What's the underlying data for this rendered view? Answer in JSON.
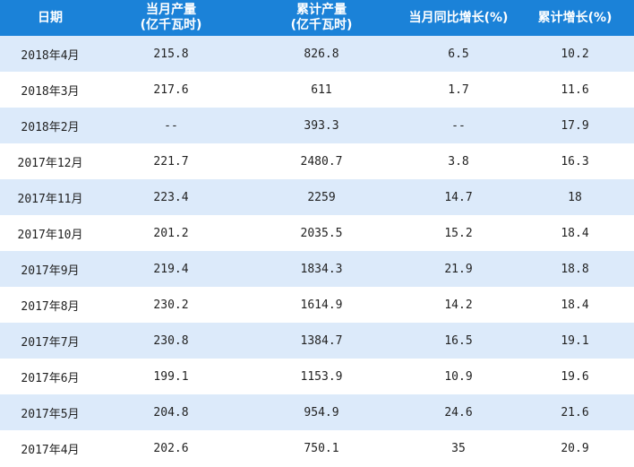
{
  "headers": [
    "日期",
    "当月产量\n(亿千瓦时)",
    "累计产量\n(亿千瓦时)",
    "当月同比增长(%)",
    "累计增长(%)"
  ],
  "header_lines": [
    [
      "日期"
    ],
    [
      "当月产量",
      "(亿千瓦时)"
    ],
    [
      "累计产量",
      "(亿千瓦时)"
    ],
    [
      "当月同比增长(%)"
    ],
    [
      "累计增长(%)"
    ]
  ],
  "rows": [
    [
      "2018年4月",
      "215.8",
      "826.8",
      "6.5",
      "10.2"
    ],
    [
      "2018年3月",
      "217.6",
      "611",
      "1.7",
      "11.6"
    ],
    [
      "2018年2月",
      "--",
      "393.3",
      "--",
      "17.9"
    ],
    [
      "2017年12月",
      "221.7",
      "2480.7",
      "3.8",
      "16.3"
    ],
    [
      "2017年11月",
      "223.4",
      "2259",
      "14.7",
      "18"
    ],
    [
      "2017年10月",
      "201.2",
      "2035.5",
      "15.2",
      "18.4"
    ],
    [
      "2017年9月",
      "219.4",
      "1834.3",
      "21.9",
      "18.8"
    ],
    [
      "2017年8月",
      "230.2",
      "1614.9",
      "14.2",
      "18.4"
    ],
    [
      "2017年7月",
      "230.8",
      "1384.7",
      "16.5",
      "19.1"
    ],
    [
      "2017年6月",
      "199.1",
      "1153.9",
      "10.9",
      "19.6"
    ],
    [
      "2017年5月",
      "204.8",
      "954.9",
      "24.6",
      "21.6"
    ],
    [
      "2017年4月",
      "202.6",
      "750.1",
      "35",
      "20.9"
    ]
  ],
  "colors": {
    "header_bg": "#1b82d8",
    "row_alt": "#dceafa"
  }
}
